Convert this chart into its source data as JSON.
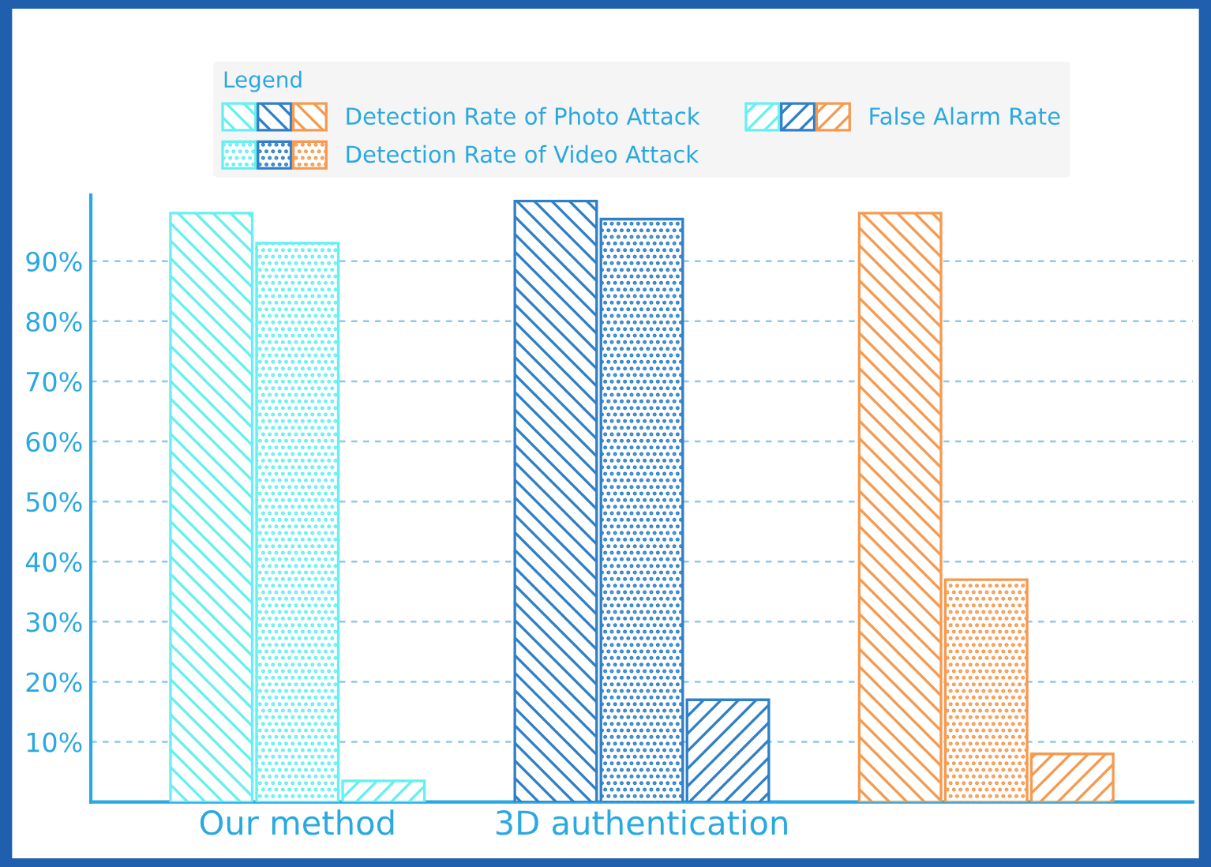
{
  "chart_data": {
    "type": "bar",
    "categories": [
      "Our method",
      "3D authentication",
      null
    ],
    "series": [
      {
        "name": "Detection Rate of Photo Attack",
        "colors": [
          "#66f0f0",
          "#2f80c8",
          "#f59a50"
        ],
        "values": [
          98,
          100,
          98
        ]
      },
      {
        "name": "Detection Rate of Video Attack",
        "colors": [
          "#66f0f0",
          "#2f80c8",
          "#f59a50"
        ],
        "values": [
          93,
          97,
          37
        ]
      },
      {
        "name": "False Alarm Rate",
        "colors": [
          "#66f0f0",
          "#2f80c8",
          "#f59a50"
        ],
        "values": [
          3.5,
          17,
          8
        ]
      }
    ],
    "legend_title": "Legend",
    "legend": "top",
    "ylim": [
      0,
      101
    ],
    "yticks": [
      {
        "value": 10,
        "label": "10%"
      },
      {
        "value": 20,
        "label": "20%"
      },
      {
        "value": 30,
        "label": "30%"
      },
      {
        "value": 40,
        "label": "40%"
      },
      {
        "value": 50,
        "label": "50%"
      },
      {
        "value": 60,
        "label": "60%"
      },
      {
        "value": 70,
        "label": "70%"
      },
      {
        "value": 80,
        "label": "80%"
      },
      {
        "value": 90,
        "label": "90%"
      }
    ],
    "grid": "y"
  }
}
